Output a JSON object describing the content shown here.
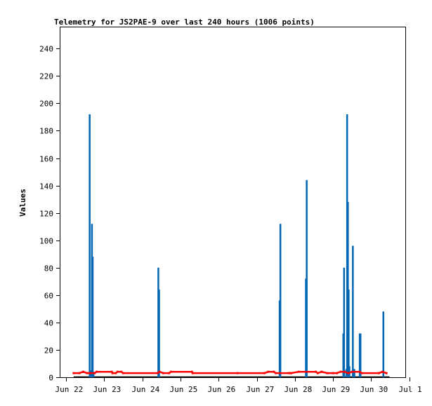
{
  "chart_data": {
    "type": "line",
    "title": "Telemetry for JS2PAE-9 over last 240 hours (1006 points)",
    "ylabel": "Values",
    "xlabel": "",
    "x_tick_labels": [
      "Jun 22",
      "Jun 23",
      "Jun 24",
      "Jun 25",
      "Jun 26",
      "Jun 27",
      "Jun 28",
      "Jun 29",
      "Jun 30",
      "Jul 1"
    ],
    "y_ticks": [
      0,
      20,
      40,
      60,
      80,
      100,
      120,
      140,
      160,
      180,
      200,
      220,
      240
    ],
    "xlim_days": [
      0,
      9
    ],
    "ylim": [
      0,
      256
    ],
    "grid": false,
    "series": [
      {
        "name": "",
        "color": "#0066b3",
        "style": "impulses",
        "points": [
          [
            0.62,
            192
          ],
          [
            0.64,
            5
          ],
          [
            0.68,
            112
          ],
          [
            0.7,
            88
          ],
          [
            0.72,
            4
          ],
          [
            2.42,
            80
          ],
          [
            2.44,
            64
          ],
          [
            5.6,
            56
          ],
          [
            5.62,
            112
          ],
          [
            6.29,
            72
          ],
          [
            6.31,
            144
          ],
          [
            7.27,
            32
          ],
          [
            7.29,
            80
          ],
          [
            7.35,
            6
          ],
          [
            7.37,
            192
          ],
          [
            7.39,
            128
          ],
          [
            7.41,
            64
          ],
          [
            7.43,
            8
          ],
          [
            7.52,
            96
          ],
          [
            7.56,
            6
          ],
          [
            7.7,
            32
          ],
          [
            7.72,
            32
          ],
          [
            8.32,
            48
          ]
        ]
      },
      {
        "name": "",
        "color": "#ff0000",
        "style": "line",
        "points": [
          [
            0.2,
            3
          ],
          [
            0.35,
            3
          ],
          [
            0.45,
            4
          ],
          [
            0.55,
            3
          ],
          [
            0.62,
            3
          ],
          [
            0.75,
            3
          ],
          [
            0.8,
            4
          ],
          [
            1.2,
            4
          ],
          [
            1.22,
            3
          ],
          [
            1.3,
            3
          ],
          [
            1.35,
            4
          ],
          [
            1.45,
            4
          ],
          [
            1.5,
            3
          ],
          [
            2.4,
            3
          ],
          [
            2.45,
            4
          ],
          [
            2.55,
            3
          ],
          [
            2.7,
            3
          ],
          [
            2.75,
            4
          ],
          [
            3.3,
            4
          ],
          [
            3.32,
            3
          ],
          [
            4.5,
            3
          ],
          [
            5.2,
            3
          ],
          [
            5.3,
            4
          ],
          [
            5.45,
            4
          ],
          [
            5.5,
            3
          ],
          [
            5.85,
            3
          ],
          [
            5.9,
            3
          ],
          [
            6.1,
            4
          ],
          [
            6.55,
            4
          ],
          [
            6.6,
            3
          ],
          [
            6.7,
            4
          ],
          [
            6.85,
            3
          ],
          [
            7.0,
            3
          ],
          [
            7.1,
            3
          ],
          [
            7.2,
            4
          ],
          [
            7.3,
            4
          ],
          [
            7.4,
            3
          ],
          [
            7.5,
            4
          ],
          [
            7.7,
            4
          ],
          [
            7.75,
            3
          ],
          [
            8.2,
            3
          ],
          [
            8.3,
            4
          ],
          [
            8.4,
            3
          ]
        ]
      }
    ]
  }
}
